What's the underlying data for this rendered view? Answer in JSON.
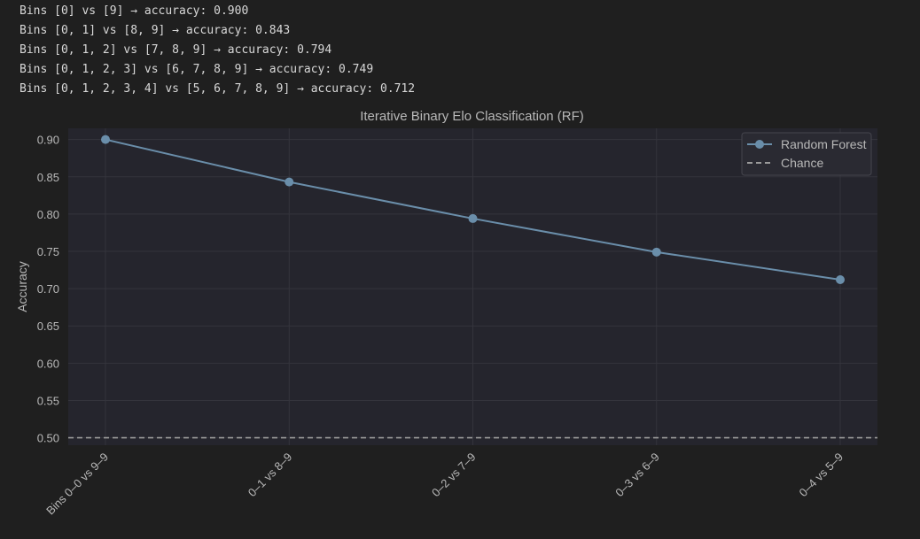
{
  "console_output": [
    "Bins [0] vs [9] → accuracy: 0.900",
    "Bins [0, 1] vs [8, 9] → accuracy: 0.843",
    "Bins [0, 1, 2] vs [7, 8, 9] → accuracy: 0.794",
    "Bins [0, 1, 2, 3] vs [6, 7, 8, 9] → accuracy: 0.749",
    "Bins [0, 1, 2, 3, 4] vs [5, 6, 7, 8, 9] → accuracy: 0.712"
  ],
  "chart_data": {
    "type": "line",
    "title": "Iterative Binary Elo Classification (RF)",
    "xlabel": "",
    "ylabel": "Accuracy",
    "categories": [
      "Bins 0–0 vs 9–9",
      "0–1 vs 8–9",
      "0–2 vs 7–9",
      "0–3 vs 6–9",
      "0–4 vs 5–9"
    ],
    "series": [
      {
        "name": "Random Forest",
        "values": [
          0.9,
          0.843,
          0.794,
          0.749,
          0.712
        ],
        "color": "#6a8eaa"
      }
    ],
    "reference_lines": [
      {
        "name": "Chance",
        "value": 0.5,
        "style": "dashed",
        "color": "#9a9a9a"
      }
    ],
    "ylim": [
      0.49,
      0.915
    ],
    "yticks": [
      0.5,
      0.55,
      0.6,
      0.65,
      0.7,
      0.75,
      0.8,
      0.85,
      0.9
    ],
    "ytick_labels": [
      "0.50",
      "0.55",
      "0.60",
      "0.65",
      "0.70",
      "0.75",
      "0.80",
      "0.85",
      "0.90"
    ],
    "grid": true,
    "legend_position": "top-right",
    "colors": {
      "background": "#1f1f1f",
      "plot_area": "#25252d",
      "grid": "#34343c",
      "text": "#b8b8b8"
    }
  }
}
